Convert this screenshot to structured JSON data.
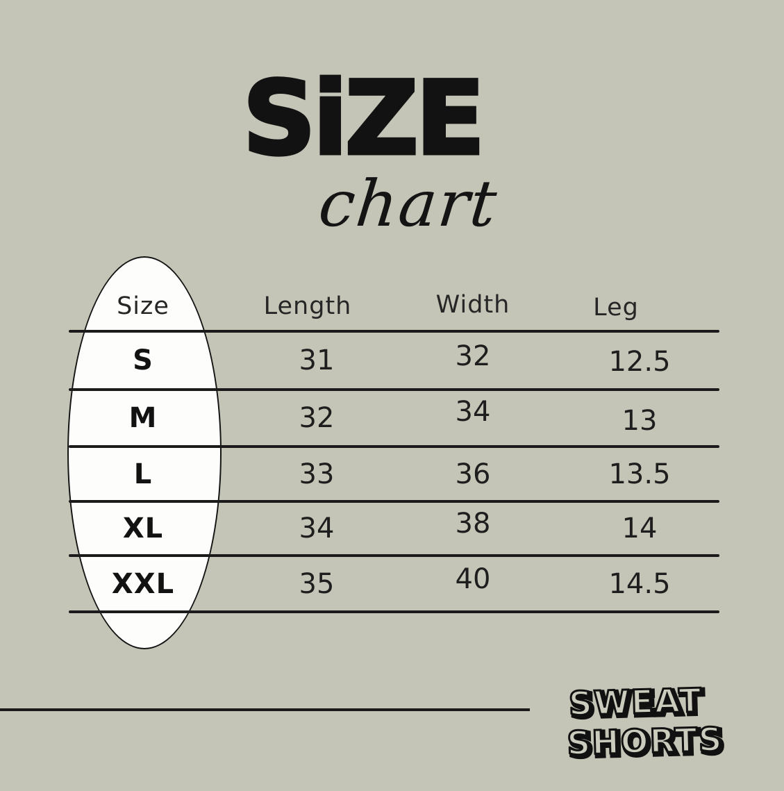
{
  "colors": {
    "background": "#c4c5b6",
    "ink": "#121212",
    "table_line": "#1b1b1b",
    "ellipse_fill": "#fdfdfc"
  },
  "title": {
    "main": "SiZE",
    "sub": "chart"
  },
  "table": {
    "headers": [
      "Size",
      "Length",
      "Width",
      "Leg"
    ],
    "rows": [
      {
        "size": "S",
        "length": "31",
        "width": "32",
        "leg": "12.5"
      },
      {
        "size": "M",
        "length": "32",
        "width": "34",
        "leg": "13"
      },
      {
        "size": "L",
        "length": "33",
        "width": "36",
        "leg": "13.5"
      },
      {
        "size": "XL",
        "length": "34",
        "width": "38",
        "leg": "14"
      },
      {
        "size": "XXL",
        "length": "35",
        "width": "40",
        "leg": "14.5"
      }
    ]
  },
  "brand": {
    "line1": "SWEAT",
    "line2": "SHORTS"
  },
  "chart_data": {
    "type": "table",
    "title": "SiZE chart",
    "columns": [
      "Size",
      "Length",
      "Width",
      "Leg"
    ],
    "rows": [
      [
        "S",
        31,
        32,
        12.5
      ],
      [
        "M",
        32,
        34,
        13
      ],
      [
        "L",
        33,
        36,
        13.5
      ],
      [
        "XL",
        34,
        38,
        14
      ],
      [
        "XXL",
        35,
        40,
        14.5
      ]
    ],
    "brand": "SWEAT SHORTS"
  }
}
